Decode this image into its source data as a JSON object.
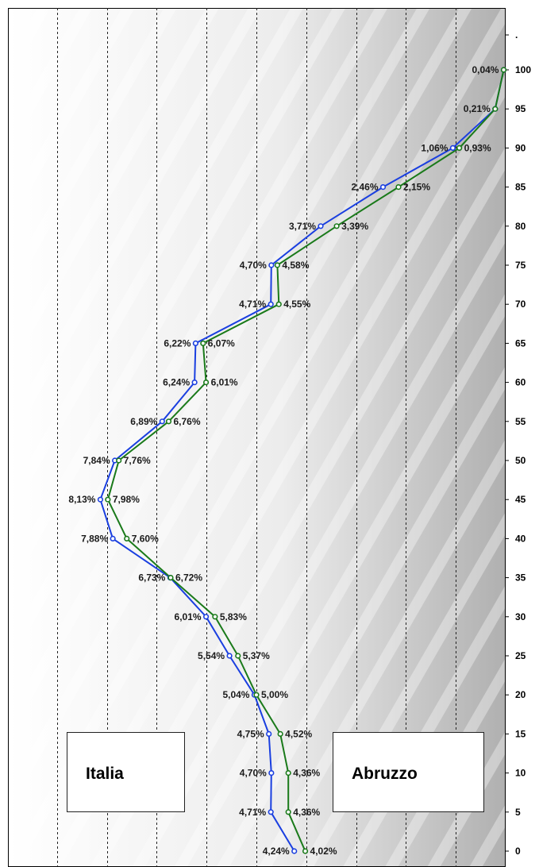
{
  "chart_data": {
    "type": "line",
    "orientation": "vertical-y-categories",
    "y_axis_position": "right",
    "y_ticks": [
      "0",
      "5",
      "10",
      "15",
      "20",
      "25",
      "30",
      "35",
      "40",
      "45",
      "50",
      "55",
      "60",
      "65",
      "70",
      "75",
      "80",
      "85",
      "90",
      "95",
      "100",
      "."
    ],
    "categories": [
      0,
      5,
      10,
      15,
      20,
      25,
      30,
      35,
      40,
      45,
      50,
      55,
      60,
      65,
      70,
      75,
      80,
      85,
      90,
      95,
      100
    ],
    "xlim": [
      9,
      0
    ],
    "grid": "vertical dashed",
    "series": [
      {
        "name": "Italia",
        "color": "#1a3fe0",
        "values": [
          4.24,
          4.71,
          4.7,
          4.75,
          5.04,
          5.54,
          6.01,
          6.73,
          7.88,
          8.13,
          7.84,
          6.89,
          6.24,
          6.22,
          4.71,
          4.7,
          3.71,
          2.46,
          1.06,
          0.21,
          0.04
        ],
        "labels": [
          "4,24%",
          "4,71%",
          "4,70%",
          "4,75%",
          "5,04%",
          "5,54%",
          "6,01%",
          "6,73%",
          "7,88%",
          "8,13%",
          "7,84%",
          "6,89%",
          "6,24%",
          "6,22%",
          "4,71%",
          "4,70%",
          "3,71%",
          "2,46%",
          "1,06%",
          "0,21%",
          "0,04%"
        ]
      },
      {
        "name": "Abruzzo",
        "color": "#1a7a1a",
        "values": [
          4.02,
          4.36,
          4.36,
          4.52,
          5.0,
          5.37,
          5.83,
          6.72,
          7.6,
          7.98,
          7.76,
          6.76,
          6.01,
          6.07,
          4.55,
          4.58,
          3.39,
          2.15,
          0.93,
          0.21,
          0.04
        ],
        "labels": [
          "4,02%",
          "4,36%",
          "4,36%",
          "4,52%",
          "5,00%",
          "5,37%",
          "5,83%",
          "6,72%",
          "7,60%",
          "7,98%",
          "7,76%",
          "6,76%",
          "6,01%",
          "6,07%",
          "4,55%",
          "4,58%",
          "3,39%",
          "2,15%",
          "0,93%",
          "",
          ""
        ]
      }
    ],
    "legend": [
      {
        "text": "Italia",
        "placement": "bottom-left"
      },
      {
        "text": "Abruzzo",
        "placement": "bottom-right"
      }
    ]
  }
}
